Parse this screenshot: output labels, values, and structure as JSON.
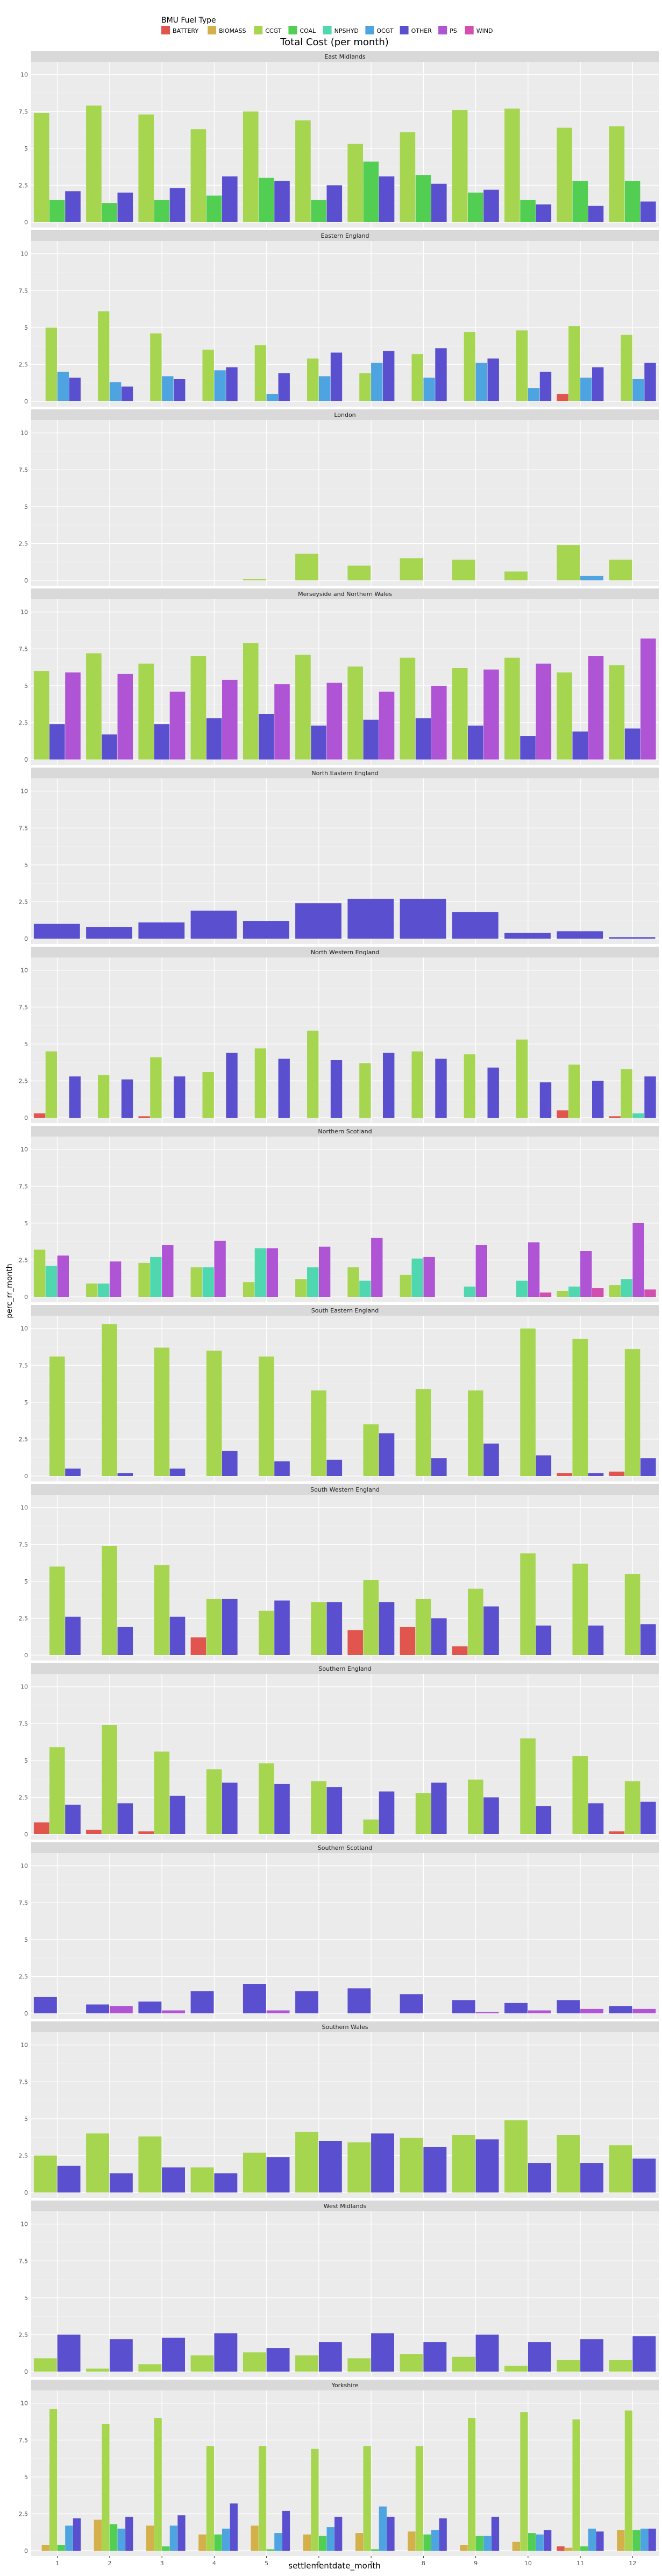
{
  "title": "Total Cost (per month)",
  "legend": {
    "title": "BMU Fuel Type",
    "items": [
      {
        "name": "BATTERY",
        "color": "#F8766D"
      },
      {
        "name": "BIOMASS",
        "color": "#D39200"
      },
      {
        "name": "CCGT",
        "color": "#93AA00"
      },
      {
        "name": "COAL",
        "color": "#00BA38"
      },
      {
        "name": "NPSHYD",
        "color": "#00C19F"
      },
      {
        "name": "OCGT",
        "color": "#00B9E3"
      },
      {
        "name": "OTHER",
        "color": "#619CFF"
      },
      {
        "name": "PS",
        "color": "#DB72FB"
      },
      {
        "name": "WIND",
        "color": "#FF61C3"
      }
    ]
  },
  "chart_data": {
    "type": "bar",
    "facet_by": "region",
    "xlabel": "settlementdate_month",
    "ylabel": "perc_rr_month",
    "categories": [
      "1",
      "2",
      "3",
      "4",
      "5",
      "6",
      "7",
      "8",
      "9",
      "10",
      "11",
      "12"
    ],
    "y_ticks": [
      "0",
      "2.5",
      "5",
      "7.5",
      "10"
    ],
    "ylim": [
      0,
      10.5
    ],
    "grid": true,
    "legend_position": "top-left",
    "fuel_types": [
      "BATTERY",
      "BIOMASS",
      "CCGT",
      "COAL",
      "NPSHYD",
      "OCGT",
      "OTHER",
      "PS",
      "WIND"
    ],
    "colors": {
      "BATTERY": "#e0554e",
      "BIOMASS": "#d4b04a",
      "CCGT": "#a6d64f",
      "COAL": "#52cf53",
      "NPSHYD": "#4fd8b0",
      "OCGT": "#4ea4e0",
      "OTHER": "#5a4fcf",
      "PS": "#b054d6",
      "WIND": "#d24fb0"
    },
    "panels": [
      {
        "region": "East Midlands",
        "series": [
          {
            "fuel": "CCGT",
            "values": [
              7.4,
              7.9,
              7.3,
              6.3,
              7.5,
              6.9,
              5.3,
              6.1,
              7.6,
              7.7,
              6.4,
              6.5
            ]
          },
          {
            "fuel": "COAL",
            "values": [
              1.5,
              1.3,
              1.5,
              1.8,
              3.0,
              1.5,
              4.1,
              3.2,
              2.0,
              1.5,
              2.8,
              2.8
            ]
          },
          {
            "fuel": "OTHER",
            "values": [
              2.1,
              2.0,
              2.3,
              3.1,
              2.8,
              2.5,
              3.1,
              2.6,
              2.2,
              1.2,
              1.1,
              1.4
            ]
          }
        ]
      },
      {
        "region": "Eastern England",
        "series": [
          {
            "fuel": "BATTERY",
            "values": [
              0,
              0,
              0,
              0,
              0,
              0,
              0,
              0,
              0,
              0,
              0.5,
              0
            ]
          },
          {
            "fuel": "CCGT",
            "values": [
              5.0,
              6.1,
              4.6,
              3.5,
              3.8,
              2.9,
              1.9,
              3.2,
              4.7,
              4.8,
              5.1,
              4.5
            ]
          },
          {
            "fuel": "OCGT",
            "values": [
              2.0,
              1.3,
              1.7,
              2.1,
              0.5,
              1.7,
              2.6,
              1.6,
              2.6,
              0.9,
              1.6,
              1.5
            ]
          },
          {
            "fuel": "OTHER",
            "values": [
              1.6,
              1.0,
              1.5,
              2.3,
              1.9,
              3.3,
              3.4,
              3.6,
              2.9,
              2.0,
              2.3,
              2.6
            ]
          }
        ]
      },
      {
        "region": "London",
        "series": [
          {
            "fuel": "CCGT",
            "values": [
              0,
              0,
              0,
              0,
              0.1,
              1.8,
              1.0,
              1.5,
              1.4,
              0.6,
              2.4,
              1.4
            ]
          },
          {
            "fuel": "OCGT",
            "values": [
              0,
              0,
              0,
              0,
              0,
              0,
              0,
              0,
              0,
              0,
              0.3,
              0
            ]
          }
        ]
      },
      {
        "region": "Merseyside and Northern Wales",
        "series": [
          {
            "fuel": "CCGT",
            "values": [
              6.0,
              7.2,
              6.5,
              7.0,
              7.9,
              7.1,
              6.3,
              6.9,
              6.2,
              6.9,
              5.9,
              6.4
            ]
          },
          {
            "fuel": "OTHER",
            "values": [
              2.4,
              1.7,
              2.4,
              2.8,
              3.1,
              2.3,
              2.7,
              2.8,
              2.3,
              1.6,
              1.9,
              2.1
            ]
          },
          {
            "fuel": "PS",
            "values": [
              5.9,
              5.8,
              4.6,
              5.4,
              5.1,
              5.2,
              4.6,
              5.0,
              6.1,
              6.5,
              7.0,
              8.2
            ]
          }
        ]
      },
      {
        "region": "North Eastern England",
        "series": [
          {
            "fuel": "OTHER",
            "values": [
              1.0,
              0.8,
              1.1,
              1.9,
              1.2,
              2.4,
              2.7,
              2.7,
              1.8,
              0.4,
              0.5,
              0.1
            ]
          }
        ]
      },
      {
        "region": "North Western England",
        "series": [
          {
            "fuel": "BATTERY",
            "values": [
              0.3,
              0,
              0.1,
              0,
              0,
              0,
              0,
              0,
              0,
              0,
              0.5,
              0.1
            ]
          },
          {
            "fuel": "CCGT",
            "values": [
              4.5,
              2.9,
              4.1,
              3.1,
              4.7,
              5.9,
              3.7,
              4.5,
              4.3,
              5.3,
              3.6,
              3.3
            ]
          },
          {
            "fuel": "NPSHYD",
            "values": [
              0,
              0,
              0,
              0,
              0,
              0,
              0,
              0,
              0,
              0,
              0,
              0.3
            ]
          },
          {
            "fuel": "OTHER",
            "values": [
              2.8,
              2.6,
              2.8,
              4.4,
              4.0,
              3.9,
              4.4,
              4.0,
              3.4,
              2.4,
              2.5,
              2.8
            ]
          }
        ]
      },
      {
        "region": "Northern Scotland",
        "series": [
          {
            "fuel": "CCGT",
            "values": [
              3.2,
              0.9,
              2.3,
              2.0,
              1.0,
              1.2,
              2.0,
              1.5,
              0,
              0,
              0.4,
              0.8
            ]
          },
          {
            "fuel": "NPSHYD",
            "values": [
              2.1,
              0.9,
              2.7,
              2.0,
              3.3,
              2.0,
              1.1,
              2.6,
              0.7,
              1.1,
              0.7,
              1.2
            ]
          },
          {
            "fuel": "PS",
            "values": [
              2.8,
              2.4,
              3.5,
              3.8,
              3.3,
              3.4,
              4.0,
              2.7,
              3.5,
              3.7,
              3.1,
              5.0
            ]
          },
          {
            "fuel": "WIND",
            "values": [
              0,
              0,
              0,
              0,
              0,
              0,
              0,
              0,
              0,
              0.3,
              0.6,
              0.5
            ]
          }
        ]
      },
      {
        "region": "South Eastern England",
        "series": [
          {
            "fuel": "BATTERY",
            "values": [
              0,
              0,
              0,
              0,
              0,
              0,
              0,
              0,
              0,
              0,
              0.2,
              0.3
            ]
          },
          {
            "fuel": "CCGT",
            "values": [
              8.1,
              10.3,
              8.7,
              8.5,
              8.1,
              5.8,
              3.5,
              5.9,
              5.8,
              10.0,
              9.3,
              8.6
            ]
          },
          {
            "fuel": "OTHER",
            "values": [
              0.5,
              0.2,
              0.5,
              1.7,
              1.0,
              1.1,
              2.9,
              1.2,
              2.2,
              1.4,
              0.2,
              1.2
            ]
          }
        ]
      },
      {
        "region": "South Western England",
        "series": [
          {
            "fuel": "BATTERY",
            "values": [
              0,
              0,
              0,
              1.2,
              0,
              0,
              1.7,
              1.9,
              0.6,
              0,
              0,
              0
            ]
          },
          {
            "fuel": "CCGT",
            "values": [
              6.0,
              7.4,
              6.1,
              3.8,
              3.0,
              3.6,
              5.1,
              3.8,
              4.5,
              6.9,
              6.2,
              5.5
            ]
          },
          {
            "fuel": "OTHER",
            "values": [
              2.6,
              1.9,
              2.6,
              3.8,
              3.7,
              3.6,
              3.6,
              2.5,
              3.3,
              2.0,
              2.0,
              2.1
            ]
          }
        ]
      },
      {
        "region": "Southern England",
        "series": [
          {
            "fuel": "BATTERY",
            "values": [
              0.8,
              0.3,
              0.2,
              0,
              0,
              0,
              0,
              0,
              0,
              0,
              0,
              0.2
            ]
          },
          {
            "fuel": "CCGT",
            "values": [
              5.9,
              7.4,
              5.6,
              4.4,
              4.8,
              3.6,
              1.0,
              2.8,
              3.7,
              6.5,
              5.3,
              3.6
            ]
          },
          {
            "fuel": "OTHER",
            "values": [
              2.0,
              2.1,
              2.6,
              3.5,
              3.4,
              3.2,
              2.9,
              3.5,
              2.5,
              1.9,
              2.1,
              2.2
            ]
          }
        ]
      },
      {
        "region": "Southern Scotland",
        "series": [
          {
            "fuel": "OTHER",
            "values": [
              1.1,
              0.6,
              0.8,
              1.5,
              2.0,
              1.5,
              1.7,
              1.3,
              0.9,
              0.7,
              0.9,
              0.5
            ]
          },
          {
            "fuel": "PS",
            "values": [
              0,
              0.5,
              0.2,
              0,
              0.2,
              0,
              0,
              0,
              0.1,
              0.2,
              0.3,
              0.3
            ]
          }
        ]
      },
      {
        "region": "Southern Wales",
        "series": [
          {
            "fuel": "CCGT",
            "values": [
              2.5,
              4.0,
              3.8,
              1.7,
              2.7,
              4.1,
              3.4,
              3.7,
              3.9,
              4.9,
              3.9,
              3.2
            ]
          },
          {
            "fuel": "OTHER",
            "values": [
              1.8,
              1.3,
              1.7,
              1.3,
              2.4,
              3.5,
              4.0,
              3.1,
              3.6,
              2.0,
              2.0,
              2.3
            ]
          }
        ]
      },
      {
        "region": "West Midlands",
        "series": [
          {
            "fuel": "CCGT",
            "values": [
              0.9,
              0.2,
              0.5,
              1.1,
              1.3,
              1.1,
              0.9,
              1.2,
              1.0,
              0.4,
              0.8,
              0.8
            ]
          },
          {
            "fuel": "OTHER",
            "values": [
              2.5,
              2.2,
              2.3,
              2.6,
              1.6,
              2.0,
              2.6,
              2.0,
              2.5,
              2.0,
              2.2,
              2.4
            ]
          }
        ]
      },
      {
        "region": "Yorkshire",
        "series": [
          {
            "fuel": "BATTERY",
            "values": [
              0,
              0,
              0,
              0,
              0,
              0,
              0,
              0,
              0,
              0,
              0.3,
              0
            ]
          },
          {
            "fuel": "BIOMASS",
            "values": [
              0.4,
              2.1,
              1.7,
              1.1,
              1.7,
              1.1,
              1.2,
              1.3,
              0.4,
              0.6,
              0.2,
              1.4
            ]
          },
          {
            "fuel": "CCGT",
            "values": [
              9.6,
              8.6,
              9.0,
              7.1,
              7.1,
              6.9,
              7.1,
              7.1,
              9.0,
              9.4,
              8.9,
              9.5
            ]
          },
          {
            "fuel": "COAL",
            "values": [
              0.4,
              1.8,
              0.3,
              1.1,
              0.1,
              1.0,
              0.1,
              1.1,
              1.0,
              1.2,
              0.3,
              1.4
            ]
          },
          {
            "fuel": "OCGT",
            "values": [
              1.7,
              1.5,
              1.7,
              1.5,
              1.2,
              1.6,
              3.0,
              1.4,
              1.0,
              1.1,
              1.5,
              1.5
            ]
          },
          {
            "fuel": "OTHER",
            "values": [
              2.2,
              2.3,
              2.4,
              3.2,
              2.7,
              2.3,
              2.3,
              2.2,
              2.3,
              1.4,
              1.3,
              1.5
            ]
          }
        ]
      }
    ]
  }
}
